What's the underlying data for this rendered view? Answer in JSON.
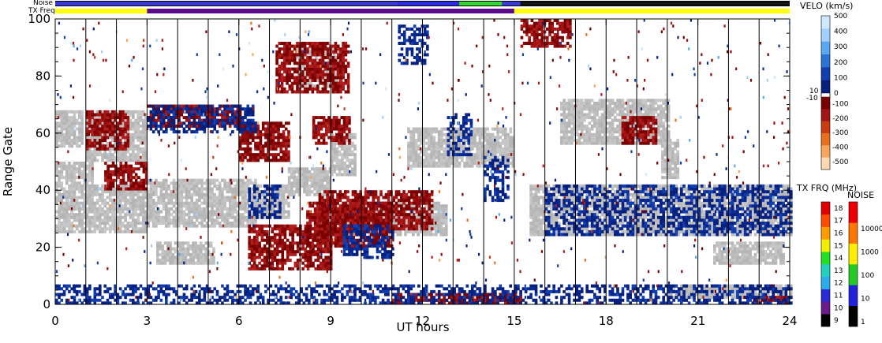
{
  "chart_data": {
    "type": "heatmap",
    "xlabel": "UT hours",
    "ylabel": "Range Gate",
    "xlim": [
      0,
      24
    ],
    "ylim": [
      0,
      100
    ],
    "x_ticks": [
      "0",
      "3",
      "6",
      "9",
      "12",
      "15",
      "18",
      "21",
      "24"
    ],
    "y_ticks": [
      "0",
      "20",
      "40",
      "60",
      "80",
      "100"
    ],
    "hour_grid_lines": [
      1,
      2,
      3,
      4,
      5,
      6,
      7,
      8,
      9,
      10,
      11,
      12,
      13,
      14,
      15,
      16,
      17,
      18,
      19,
      20,
      21,
      22,
      23
    ],
    "strip_labels": {
      "noise": "Noise",
      "tx_freq": "TX Freq"
    },
    "noise_strip": [
      {
        "x0": 0,
        "x1": 11.2,
        "color": "#3a3ad8"
      },
      {
        "x0": 11.2,
        "x1": 13.2,
        "color": "#2c2ce6"
      },
      {
        "x0": 13.2,
        "x1": 14.6,
        "color": "#33d633"
      },
      {
        "x0": 14.6,
        "x1": 15.2,
        "color": "#3a3ad8"
      },
      {
        "x0": 15.2,
        "x1": 24,
        "color": "#111111"
      }
    ],
    "tx_strip": [
      {
        "x0": 0,
        "x1": 3.0,
        "color": "#ffff00"
      },
      {
        "x0": 3.0,
        "x1": 15.0,
        "color": "#5a0a8a"
      },
      {
        "x0": 15.0,
        "x1": 24,
        "color": "#ffff00"
      }
    ],
    "velocity_colorbar": {
      "title": "VELO (km/s)",
      "upper_ticks": [
        "500",
        "400",
        "300",
        "200",
        "100",
        "0"
      ],
      "lower_ticks": [
        "-100",
        "-200",
        "-300",
        "-400",
        "-500"
      ],
      "small_labels": [
        "10",
        "-10"
      ],
      "positive_colors": [
        "#cfe8ff",
        "#9fd0ff",
        "#5aa9f0",
        "#2b74d6",
        "#123fb0",
        "#07207e"
      ],
      "negative_colors": [
        "#7a0000",
        "#a41414",
        "#c83c10",
        "#e8701a",
        "#f7a55a",
        "#fcd9b0"
      ]
    },
    "txfreq_colorbar": {
      "title": "TX FRQ (MHz)",
      "ticks": [
        "9",
        "10",
        "11",
        "12",
        "13",
        "14",
        "15",
        "16",
        "17",
        "18"
      ],
      "colors": [
        "#000000",
        "#6a1a8a",
        "#2a2ad6",
        "#2aaeea",
        "#22d0c0",
        "#22e022",
        "#f0f000",
        "#ff9a00",
        "#ff4a00",
        "#e00000"
      ]
    },
    "noise_colorbar": {
      "title": "NOISE",
      "ticks": [
        "1",
        "10",
        "100",
        "1000",
        "10000"
      ],
      "colors": [
        "#000000",
        "#2222dd",
        "#22cc22",
        "#ffee00",
        "#ff7700",
        "#ee0000"
      ]
    },
    "regions": [
      {
        "kind": "gs",
        "x0": 0.0,
        "x1": 0.9,
        "y0": 55,
        "y1": 68
      },
      {
        "kind": "gs",
        "x0": 1.0,
        "x1": 3.0,
        "y0": 50,
        "y1": 68
      },
      {
        "kind": "gs",
        "x0": 0.0,
        "x1": 1.2,
        "y0": 42,
        "y1": 50
      },
      {
        "kind": "gs",
        "x0": 0.0,
        "x1": 3.0,
        "y0": 25,
        "y1": 42
      },
      {
        "kind": "gs",
        "x0": 3.0,
        "x1": 6.5,
        "y0": 27,
        "y1": 44
      },
      {
        "kind": "gs",
        "x0": 6.5,
        "x1": 7.6,
        "y0": 30,
        "y1": 42
      },
      {
        "kind": "gs",
        "x0": 7.6,
        "x1": 9.0,
        "y0": 38,
        "y1": 48
      },
      {
        "kind": "gs",
        "x0": 9.0,
        "x1": 9.8,
        "y0": 45,
        "y1": 60
      },
      {
        "kind": "gs",
        "x0": 7.9,
        "x1": 9.4,
        "y0": 76,
        "y1": 90
      },
      {
        "kind": "gs",
        "x0": 9.4,
        "x1": 12.8,
        "y0": 24,
        "y1": 36
      },
      {
        "kind": "gs",
        "x0": 3.3,
        "x1": 5.2,
        "y0": 14,
        "y1": 22
      },
      {
        "kind": "gs",
        "x0": 11.5,
        "x1": 15.0,
        "y0": 48,
        "y1": 62
      },
      {
        "kind": "gs",
        "x0": 15.5,
        "x1": 24.0,
        "y0": 24,
        "y1": 42
      },
      {
        "kind": "gs",
        "x0": 16.5,
        "x1": 20.0,
        "y0": 56,
        "y1": 72
      },
      {
        "kind": "gs",
        "x0": 18.5,
        "x1": 19.5,
        "y0": 62,
        "y1": 70
      },
      {
        "kind": "gs",
        "x0": 19.8,
        "x1": 20.3,
        "y0": 44,
        "y1": 58
      },
      {
        "kind": "gs",
        "x0": 21.5,
        "x1": 23.8,
        "y0": 14,
        "y1": 22
      },
      {
        "kind": "gs",
        "x0": 20.0,
        "x1": 24.0,
        "y0": 2,
        "y1": 7
      },
      {
        "kind": "neg",
        "x0": 6.3,
        "x1": 9.0,
        "y0": 12,
        "y1": 28
      },
      {
        "kind": "neg",
        "x0": 8.2,
        "x1": 11.0,
        "y0": 20,
        "y1": 36
      },
      {
        "kind": "neg",
        "x0": 8.6,
        "x1": 12.3,
        "y0": 26,
        "y1": 40
      },
      {
        "kind": "neg",
        "x0": 3.0,
        "x1": 6.0,
        "y0": 62,
        "y1": 70
      },
      {
        "kind": "neg",
        "x0": 6.0,
        "x1": 7.6,
        "y0": 50,
        "y1": 64
      },
      {
        "kind": "neg",
        "x0": 8.4,
        "x1": 9.6,
        "y0": 56,
        "y1": 66
      },
      {
        "kind": "neg",
        "x0": 1.0,
        "x1": 2.4,
        "y0": 54,
        "y1": 68
      },
      {
        "kind": "neg",
        "x0": 1.6,
        "x1": 3.0,
        "y0": 40,
        "y1": 50
      },
      {
        "kind": "neg",
        "x0": 7.2,
        "x1": 9.6,
        "y0": 74,
        "y1": 92
      },
      {
        "kind": "neg",
        "x0": 11.0,
        "x1": 15.2,
        "y0": 0,
        "y1": 4
      },
      {
        "kind": "neg",
        "x0": 15.2,
        "x1": 16.8,
        "y0": 90,
        "y1": 100
      },
      {
        "kind": "neg",
        "x0": 18.5,
        "x1": 19.6,
        "y0": 56,
        "y1": 66
      },
      {
        "kind": "neg",
        "x0": 22.8,
        "x1": 24.0,
        "y0": 0,
        "y1": 3
      },
      {
        "kind": "pos",
        "x0": 9.4,
        "x1": 11.0,
        "y0": 16,
        "y1": 28
      },
      {
        "kind": "pos",
        "x0": 12.8,
        "x1": 13.6,
        "y0": 52,
        "y1": 67
      },
      {
        "kind": "pos",
        "x0": 14.0,
        "x1": 14.8,
        "y0": 36,
        "y1": 52
      },
      {
        "kind": "pos",
        "x0": 0.0,
        "x1": 24.0,
        "y0": 0,
        "y1": 7
      },
      {
        "kind": "pos",
        "x0": 16.0,
        "x1": 24.0,
        "y0": 24,
        "y1": 42
      },
      {
        "kind": "pos",
        "x0": 3.0,
        "x1": 6.5,
        "y0": 60,
        "y1": 70
      },
      {
        "kind": "pos",
        "x0": 6.3,
        "x1": 7.3,
        "y0": 30,
        "y1": 42
      },
      {
        "kind": "pos",
        "x0": 11.2,
        "x1": 12.2,
        "y0": 84,
        "y1": 98
      }
    ]
  }
}
